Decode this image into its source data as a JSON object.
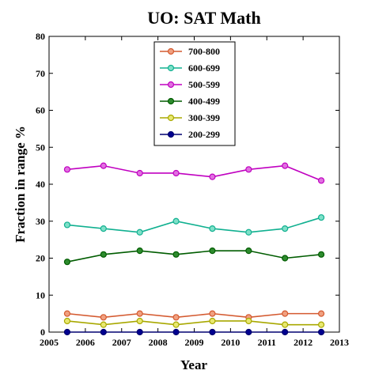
{
  "chart_data": {
    "type": "line",
    "title": "UO: SAT Math",
    "xlabel": "Year",
    "ylabel": "Fraction in range %",
    "xlim": [
      2005,
      2013
    ],
    "ylim": [
      0,
      80
    ],
    "xticks": [
      2005,
      2006,
      2007,
      2008,
      2009,
      2010,
      2011,
      2012,
      2013
    ],
    "yticks": [
      0,
      10,
      20,
      30,
      40,
      50,
      60,
      70,
      80
    ],
    "x": [
      2005.5,
      2006.5,
      2007.5,
      2008.5,
      2009.5,
      2010.5,
      2011.5,
      2012.5
    ],
    "legend_position": "top-center",
    "grid": false,
    "series": [
      {
        "name": "700-800",
        "color": "#d45a30",
        "fill": "#f0a080",
        "values": [
          5,
          4,
          5,
          4,
          5,
          4,
          5,
          5
        ]
      },
      {
        "name": "600-699",
        "color": "#10b090",
        "fill": "#7fe0c8",
        "values": [
          29,
          28,
          27,
          30,
          28,
          27,
          28,
          31
        ]
      },
      {
        "name": "500-599",
        "color": "#c000c0",
        "fill": "#e070e0",
        "values": [
          44,
          45,
          43,
          43,
          42,
          44,
          45,
          41
        ]
      },
      {
        "name": "400-499",
        "color": "#005c00",
        "fill": "#2e8b2e",
        "values": [
          19,
          21,
          22,
          21,
          22,
          22,
          20,
          21
        ]
      },
      {
        "name": "300-399",
        "color": "#a8a800",
        "fill": "#e8e870",
        "values": [
          3,
          2,
          3,
          2,
          3,
          3,
          2,
          2
        ]
      },
      {
        "name": "200-299",
        "color": "#000070",
        "fill": "#000090",
        "values": [
          0,
          0,
          0,
          0,
          0,
          0,
          0,
          0
        ]
      }
    ]
  }
}
